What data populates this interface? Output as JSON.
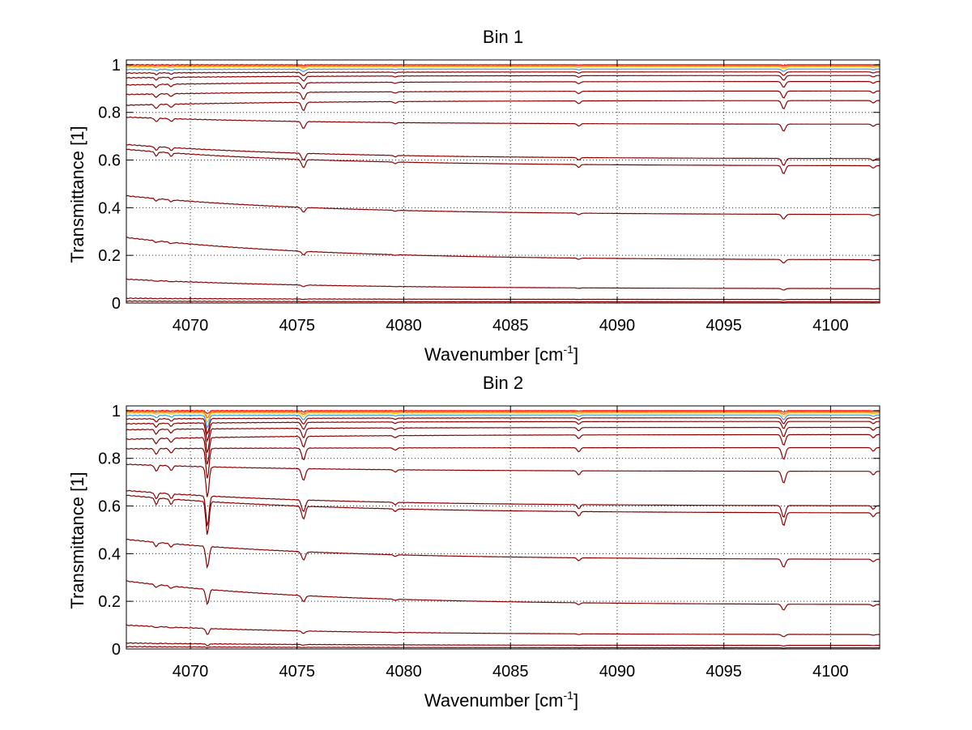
{
  "chart_data": [
    {
      "type": "line",
      "title": "Bin 1",
      "xlabel": "Wavenumber [cm",
      "xlabel_sup": "-1",
      "xlabel_end": "]",
      "ylabel": "Transmittance [1]",
      "xlim": [
        4067,
        4102.3
      ],
      "ylim": [
        0,
        1.02
      ],
      "xticks": [
        4070,
        4075,
        4080,
        4085,
        4090,
        4095,
        4100
      ],
      "yticks": [
        0,
        0.2,
        0.4,
        0.6,
        0.8,
        1
      ],
      "ytick_labels": [
        "0",
        "0.2",
        "0.4",
        "0.6",
        "0.8",
        "1"
      ],
      "grid": true,
      "series_color": "#8b0000",
      "top_colors": [
        "#ff0000",
        "#ff6600",
        "#ffcc00",
        "#3399ff"
      ],
      "series": [
        {
          "start": 1.0,
          "end": 1.0,
          "dip": 0.003
        },
        {
          "start": 0.995,
          "end": 0.995,
          "dip": 0.005
        },
        {
          "start": 0.99,
          "end": 0.99,
          "dip": 0.008
        },
        {
          "start": 0.98,
          "end": 0.982,
          "dip": 0.01
        },
        {
          "start": 0.965,
          "end": 0.97,
          "dip": 0.015
        },
        {
          "start": 0.945,
          "end": 0.955,
          "dip": 0.02
        },
        {
          "start": 0.915,
          "end": 0.93,
          "dip": 0.025
        },
        {
          "start": 0.875,
          "end": 0.89,
          "dip": 0.03
        },
        {
          "start": 0.83,
          "end": 0.85,
          "dip": 0.035
        },
        {
          "start": 0.78,
          "end": 0.75,
          "dip": 0.03
        },
        {
          "start": 0.665,
          "end": 0.605,
          "dip": 0.03
        },
        {
          "start": 0.645,
          "end": 0.575,
          "dip": 0.035
        },
        {
          "start": 0.45,
          "end": 0.37,
          "dip": 0.02
        },
        {
          "start": 0.275,
          "end": 0.18,
          "dip": 0.015
        },
        {
          "start": 0.1,
          "end": 0.06,
          "dip": 0.007
        },
        {
          "start": 0.02,
          "end": 0.015,
          "dip": 0.002
        },
        {
          "start": 0.008,
          "end": 0.005,
          "dip": 0.001
        }
      ]
    },
    {
      "type": "line",
      "title": "Bin 2",
      "xlabel": "Wavenumber [cm",
      "xlabel_sup": "-1",
      "xlabel_end": "]",
      "ylabel": "Transmittance [1]",
      "xlim": [
        4067,
        4102.3
      ],
      "ylim": [
        0,
        1.02
      ],
      "xticks": [
        4070,
        4075,
        4080,
        4085,
        4090,
        4095,
        4100
      ],
      "yticks": [
        0,
        0.2,
        0.4,
        0.6,
        0.8,
        1
      ],
      "ytick_labels": [
        "0",
        "0.2",
        "0.4",
        "0.6",
        "0.8",
        "1"
      ],
      "grid": true,
      "series_color": "#8b0000",
      "top_colors": [
        "#ff0000",
        "#ff6600",
        "#ffcc00",
        "#3399ff"
      ],
      "series": [
        {
          "start": 1.0,
          "end": 1.0,
          "dip": 0.005
        },
        {
          "start": 0.995,
          "end": 0.995,
          "dip": 0.01
        },
        {
          "start": 0.99,
          "end": 0.99,
          "dip": 0.015
        },
        {
          "start": 0.98,
          "end": 0.982,
          "dip": 0.02
        },
        {
          "start": 0.965,
          "end": 0.97,
          "dip": 0.025
        },
        {
          "start": 0.945,
          "end": 0.955,
          "dip": 0.03
        },
        {
          "start": 0.92,
          "end": 0.93,
          "dip": 0.04
        },
        {
          "start": 0.88,
          "end": 0.9,
          "dip": 0.045
        },
        {
          "start": 0.84,
          "end": 0.845,
          "dip": 0.05
        },
        {
          "start": 0.775,
          "end": 0.745,
          "dip": 0.05
        },
        {
          "start": 0.665,
          "end": 0.6,
          "dip": 0.05
        },
        {
          "start": 0.645,
          "end": 0.57,
          "dip": 0.055
        },
        {
          "start": 0.46,
          "end": 0.375,
          "dip": 0.035
        },
        {
          "start": 0.285,
          "end": 0.185,
          "dip": 0.025
        },
        {
          "start": 0.1,
          "end": 0.06,
          "dip": 0.01
        },
        {
          "start": 0.025,
          "end": 0.015,
          "dip": 0.003
        },
        {
          "start": 0.01,
          "end": 0.005,
          "dip": 0.001
        }
      ]
    }
  ]
}
